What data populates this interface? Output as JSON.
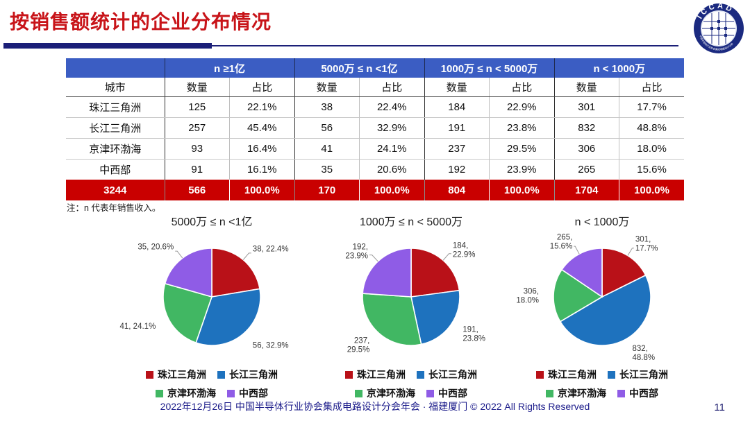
{
  "title": "按销售额统计的企业分布情况",
  "logo": {
    "text": "ICCAD",
    "ring_text": "中国半导体行业协会集成电路设计分会"
  },
  "table": {
    "city_header": "城市",
    "groups": [
      "n ≥1亿",
      "5000万 ≤ n <1亿",
      "1000万 ≤ n < 5000万",
      "n < 1000万"
    ],
    "sub_headers": [
      "数量",
      "占比"
    ],
    "rows": [
      {
        "city": "珠江三角洲",
        "values": [
          "125",
          "22.1%",
          "38",
          "22.4%",
          "184",
          "22.9%",
          "301",
          "17.7%"
        ]
      },
      {
        "city": "长江三角洲",
        "values": [
          "257",
          "45.4%",
          "56",
          "32.9%",
          "191",
          "23.8%",
          "832",
          "48.8%"
        ]
      },
      {
        "city": "京津环渤海",
        "values": [
          "93",
          "16.4%",
          "41",
          "24.1%",
          "237",
          "29.5%",
          "306",
          "18.0%"
        ]
      },
      {
        "city": "中西部",
        "values": [
          "91",
          "16.1%",
          "35",
          "20.6%",
          "192",
          "23.9%",
          "265",
          "15.6%"
        ]
      }
    ],
    "total": {
      "label": "3244",
      "values": [
        "566",
        "100.0%",
        "170",
        "100.0%",
        "804",
        "100.0%",
        "1704",
        "100.0%"
      ]
    }
  },
  "note": "注：n 代表年销售收入。",
  "legend": [
    "珠江三角洲",
    "长江三角洲",
    "京津环渤海",
    "中西部"
  ],
  "colors": {
    "header_blue": "#3B5DC3",
    "total_red": "#C90000",
    "title_red": "#C81419",
    "accent_navy": "#1B1F78",
    "series": [
      "#B91118",
      "#1E72BE",
      "#41B763",
      "#8F5CE6"
    ]
  },
  "chart_data": [
    {
      "type": "pie",
      "title": "5000万 ≤ n <1亿",
      "categories": [
        "珠江三角洲",
        "长江三角洲",
        "京津环渤海",
        "中西部"
      ],
      "values": [
        38,
        56,
        41,
        35
      ],
      "pct": [
        "22.4%",
        "32.9%",
        "24.1%",
        "20.6%"
      ],
      "labels": [
        "38, 22.4%",
        "56, 32.9%",
        "41, 24.1%",
        "35, 20.6%"
      ],
      "two_line": false,
      "start_angle_deg": 0,
      "direction": "clockwise",
      "legend_position": "bottom"
    },
    {
      "type": "pie",
      "title": "1000万 ≤ n < 5000万",
      "categories": [
        "珠江三角洲",
        "长江三角洲",
        "京津环渤海",
        "中西部"
      ],
      "values": [
        184,
        191,
        237,
        192
      ],
      "pct": [
        "22.9%",
        "23.8%",
        "29.5%",
        "23.9%"
      ],
      "labels": [
        "184, 22.9%",
        "191, 23.8%",
        "237, 29.5%",
        "192, 23.9%"
      ],
      "two_line": true,
      "start_angle_deg": 0,
      "direction": "clockwise",
      "legend_position": "bottom"
    },
    {
      "type": "pie",
      "title": "n < 1000万",
      "categories": [
        "珠江三角洲",
        "长江三角洲",
        "京津环渤海",
        "中西部"
      ],
      "values": [
        301,
        832,
        306,
        265
      ],
      "pct": [
        "17.7%",
        "48.8%",
        "18.0%",
        "15.6%"
      ],
      "labels": [
        "301, 17.7%",
        "832, 48.8%",
        "306, 18.0%",
        "265, 15.6%"
      ],
      "two_line": true,
      "start_angle_deg": 0,
      "direction": "clockwise",
      "legend_position": "bottom"
    }
  ],
  "footer": {
    "text": "2022年12月26日 中国半导体行业协会集成电路设计分会年会 · 福建厦门 © 2022 All Rights Reserved",
    "page": "11"
  }
}
